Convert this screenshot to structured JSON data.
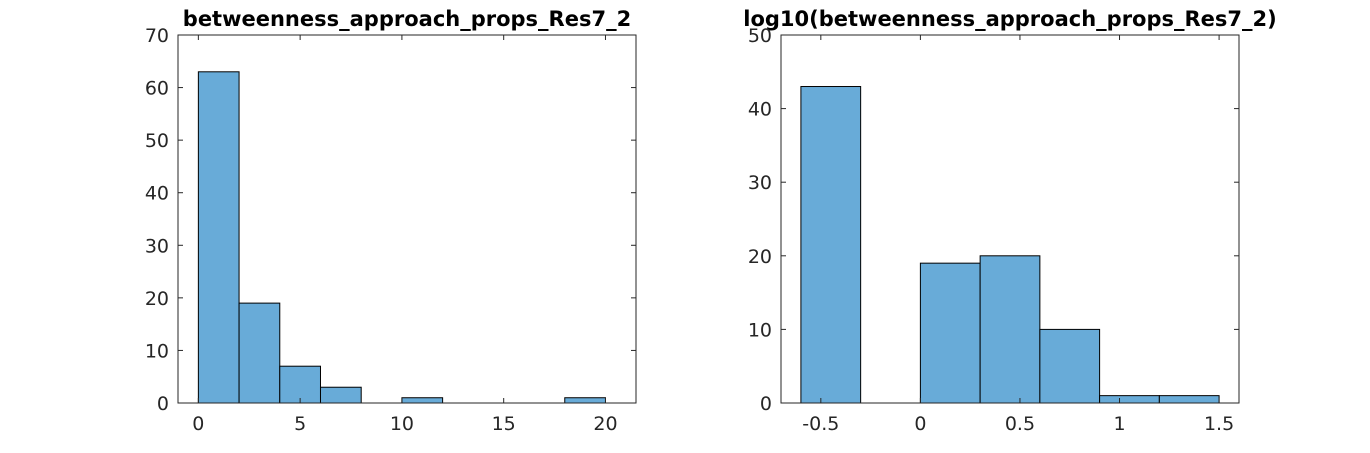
{
  "chart_data": [
    {
      "type": "bar",
      "title": "betweenness_approach_props_Res7_2",
      "xlabel": "",
      "ylabel": "",
      "bin_edges": [
        0,
        2,
        4,
        6,
        8,
        10,
        12,
        14,
        16,
        18,
        20
      ],
      "values": [
        63,
        19,
        7,
        3,
        0,
        1,
        0,
        0,
        0,
        1
      ],
      "xlim": [
        -1,
        21.5
      ],
      "ylim": [
        0,
        70
      ],
      "xticks": [
        0,
        5,
        10,
        15,
        20
      ],
      "xtick_labels": [
        "0",
        "5",
        "10",
        "15",
        "20"
      ],
      "yticks": [
        0,
        10,
        20,
        30,
        40,
        50,
        60,
        70
      ],
      "ytick_labels": [
        "0",
        "10",
        "20",
        "30",
        "40",
        "50",
        "60",
        "70"
      ],
      "grid": false,
      "bar_color": "#68abd8"
    },
    {
      "type": "bar",
      "title": "log10(betweenness_approach_props_Res7_2)",
      "xlabel": "",
      "ylabel": "",
      "bin_edges": [
        -0.6,
        -0.3,
        0,
        0.3,
        0.6,
        0.9,
        1.2,
        1.5
      ],
      "values": [
        43,
        0,
        19,
        20,
        10,
        1,
        1
      ],
      "xlim": [
        -0.7,
        1.6
      ],
      "ylim": [
        0,
        50
      ],
      "xticks": [
        -0.5,
        0,
        0.5,
        1,
        1.5
      ],
      "xtick_labels": [
        "-0.5",
        "0",
        "0.5",
        "1",
        "1.5"
      ],
      "yticks": [
        0,
        10,
        20,
        30,
        40,
        50
      ],
      "ytick_labels": [
        "0",
        "10",
        "20",
        "30",
        "40",
        "50"
      ],
      "grid": false,
      "bar_color": "#68abd8"
    }
  ]
}
